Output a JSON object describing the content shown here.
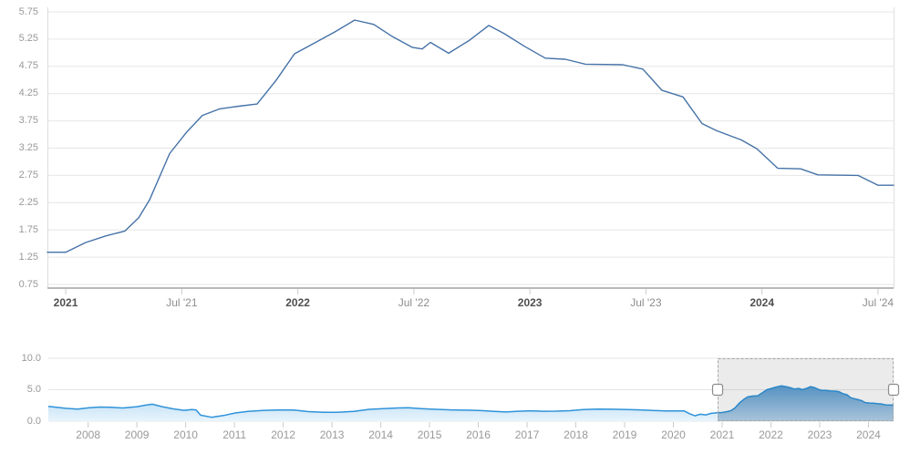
{
  "accent_colors": {
    "main_line": "#4572a7",
    "navigator_line": "#2f93d9",
    "navigator_fill_top": "#a5d2f0",
    "navigator_fill_bottom": "#e9f4fc",
    "navigator_selected_fill_top": "#5e9fd3",
    "navigator_selected_fill_bottom": "#b8d5ec",
    "gridline": "#e6e6e6",
    "axis_line": "#b9b9b9",
    "tick": "#cccccc",
    "selection_mask": "rgba(0,0,0,0.08)",
    "selection_border": "#a6a6a6",
    "handle_fill": "#ffffff",
    "handle_border": "#8c8c8c"
  },
  "chart_data": [
    {
      "type": "line",
      "name": "main-series",
      "x_range_visible": [
        "Dec 2020",
        "Aug 2024"
      ],
      "ylim": [
        0.75,
        5.75
      ],
      "grid": true,
      "y_tick_labels": [
        "5.75",
        "5.25",
        "4.75",
        "4.25",
        "3.75",
        "3.25",
        "2.75",
        "2.25",
        "1.75",
        "1.25",
        "0.75"
      ],
      "x_ticks": [
        {
          "label": "2021",
          "bold": true,
          "t": 0.0216
        },
        {
          "label": "Jul '21",
          "bold": false,
          "t": 0.1588
        },
        {
          "label": "2022",
          "bold": true,
          "t": 0.2959
        },
        {
          "label": "Jul '22",
          "bold": false,
          "t": 0.4331
        },
        {
          "label": "2023",
          "bold": true,
          "t": 0.5702
        },
        {
          "label": "Jul '23",
          "bold": false,
          "t": 0.7073
        },
        {
          "label": "2024",
          "bold": true,
          "t": 0.8445
        },
        {
          "label": "Jul '24",
          "bold": false,
          "t": 0.9816
        }
      ],
      "points": [
        [
          0.0,
          1.34
        ],
        [
          0.0216,
          1.34
        ],
        [
          0.0453,
          1.52
        ],
        [
          0.069,
          1.64
        ],
        [
          0.0916,
          1.73
        ],
        [
          0.1078,
          1.97
        ],
        [
          0.1207,
          2.3
        ],
        [
          0.1444,
          3.15
        ],
        [
          0.1649,
          3.55
        ],
        [
          0.1832,
          3.85
        ],
        [
          0.2037,
          3.97
        ],
        [
          0.2263,
          4.02
        ],
        [
          0.2478,
          4.06
        ],
        [
          0.2705,
          4.5
        ],
        [
          0.292,
          4.98
        ],
        [
          0.3157,
          5.18
        ],
        [
          0.3394,
          5.38
        ],
        [
          0.3631,
          5.6
        ],
        [
          0.3858,
          5.52
        ],
        [
          0.4073,
          5.3
        ],
        [
          0.431,
          5.1
        ],
        [
          0.4429,
          5.07
        ],
        [
          0.4526,
          5.19
        ],
        [
          0.4741,
          4.99
        ],
        [
          0.4989,
          5.23
        ],
        [
          0.5216,
          5.5
        ],
        [
          0.5399,
          5.35
        ],
        [
          0.5636,
          5.12
        ],
        [
          0.5884,
          4.9
        ],
        [
          0.6121,
          4.88
        ],
        [
          0.6358,
          4.79
        ],
        [
          0.68,
          4.78
        ],
        [
          0.7037,
          4.7
        ],
        [
          0.7263,
          4.31
        ],
        [
          0.7511,
          4.19
        ],
        [
          0.7737,
          3.7
        ],
        [
          0.7909,
          3.57
        ],
        [
          0.82,
          3.4
        ],
        [
          0.8384,
          3.24
        ],
        [
          0.8631,
          2.88
        ],
        [
          0.8901,
          2.87
        ],
        [
          0.9106,
          2.76
        ],
        [
          0.958,
          2.75
        ],
        [
          0.9817,
          2.57
        ],
        [
          1.0,
          2.57
        ]
      ]
    },
    {
      "type": "area",
      "name": "navigator-series",
      "x_range": [
        "2007",
        "2024"
      ],
      "ylim": [
        0,
        10
      ],
      "y_tick_labels": [
        "10.0",
        "5.0",
        "0.0"
      ],
      "y_tick_values": [
        10,
        5,
        0
      ],
      "year_labels": [
        "2008",
        "2009",
        "2010",
        "2011",
        "2012",
        "2013",
        "2014",
        "2015",
        "2016",
        "2017",
        "2018",
        "2019",
        "2020",
        "2021",
        "2022",
        "2023",
        "2024"
      ],
      "year_t": [
        0.0471,
        0.1048,
        0.1625,
        0.2202,
        0.2779,
        0.3356,
        0.3933,
        0.451,
        0.5087,
        0.5664,
        0.6241,
        0.6818,
        0.7395,
        0.7972,
        0.8549,
        0.9126,
        0.9703
      ],
      "selection": {
        "from_t": 0.7918,
        "to_t": 1.0
      },
      "points": [
        [
          0.0,
          2.35
        ],
        [
          0.0097,
          2.2
        ],
        [
          0.0205,
          2.05
        ],
        [
          0.0345,
          1.92
        ],
        [
          0.0485,
          2.15
        ],
        [
          0.0615,
          2.25
        ],
        [
          0.0744,
          2.2
        ],
        [
          0.0885,
          2.1
        ],
        [
          0.1046,
          2.3
        ],
        [
          0.1154,
          2.55
        ],
        [
          0.123,
          2.7
        ],
        [
          0.1348,
          2.3
        ],
        [
          0.1478,
          1.95
        ],
        [
          0.1607,
          1.72
        ],
        [
          0.1694,
          1.85
        ],
        [
          0.1748,
          1.8
        ],
        [
          0.1801,
          0.95
        ],
        [
          0.1931,
          0.62
        ],
        [
          0.2071,
          0.9
        ],
        [
          0.2211,
          1.3
        ],
        [
          0.2362,
          1.55
        ],
        [
          0.2557,
          1.72
        ],
        [
          0.2751,
          1.8
        ],
        [
          0.2902,
          1.78
        ],
        [
          0.3074,
          1.52
        ],
        [
          0.3258,
          1.4
        ],
        [
          0.342,
          1.42
        ],
        [
          0.3614,
          1.55
        ],
        [
          0.3797,
          1.88
        ],
        [
          0.3959,
          2.0
        ],
        [
          0.4132,
          2.1
        ],
        [
          0.4261,
          2.14
        ],
        [
          0.4412,
          2.0
        ],
        [
          0.4585,
          1.88
        ],
        [
          0.4768,
          1.8
        ],
        [
          0.4951,
          1.75
        ],
        [
          0.5124,
          1.68
        ],
        [
          0.5275,
          1.55
        ],
        [
          0.5415,
          1.47
        ],
        [
          0.5556,
          1.58
        ],
        [
          0.5707,
          1.65
        ],
        [
          0.5847,
          1.58
        ],
        [
          0.6009,
          1.6
        ],
        [
          0.6171,
          1.67
        ],
        [
          0.6332,
          1.85
        ],
        [
          0.6494,
          1.92
        ],
        [
          0.6678,
          1.9
        ],
        [
          0.685,
          1.84
        ],
        [
          0.7001,
          1.8
        ],
        [
          0.7152,
          1.7
        ],
        [
          0.7303,
          1.63
        ],
        [
          0.7433,
          1.62
        ],
        [
          0.7519,
          1.65
        ],
        [
          0.7584,
          1.2
        ],
        [
          0.7649,
          0.85
        ],
        [
          0.7713,
          1.1
        ],
        [
          0.7778,
          1.0
        ],
        [
          0.7843,
          1.25
        ],
        [
          0.7918,
          1.35
        ],
        [
          0.7972,
          1.38
        ],
        [
          0.8026,
          1.5
        ],
        [
          0.808,
          1.7
        ],
        [
          0.8123,
          2.1
        ],
        [
          0.8177,
          2.9
        ],
        [
          0.8231,
          3.5
        ],
        [
          0.8274,
          3.85
        ],
        [
          0.8328,
          3.98
        ],
        [
          0.8393,
          4.05
        ],
        [
          0.8447,
          4.5
        ],
        [
          0.8501,
          5.0
        ],
        [
          0.8554,
          5.2
        ],
        [
          0.8608,
          5.42
        ],
        [
          0.8673,
          5.62
        ],
        [
          0.8727,
          5.5
        ],
        [
          0.8781,
          5.3
        ],
        [
          0.8824,
          5.12
        ],
        [
          0.8878,
          5.2
        ],
        [
          0.8921,
          5.02
        ],
        [
          0.8975,
          5.25
        ],
        [
          0.9018,
          5.5
        ],
        [
          0.9061,
          5.35
        ],
        [
          0.9104,
          5.1
        ],
        [
          0.9147,
          4.9
        ],
        [
          0.9201,
          4.88
        ],
        [
          0.9255,
          4.79
        ],
        [
          0.9309,
          4.78
        ],
        [
          0.9352,
          4.7
        ],
        [
          0.9406,
          4.35
        ],
        [
          0.9449,
          4.2
        ],
        [
          0.9493,
          3.72
        ],
        [
          0.9536,
          3.58
        ],
        [
          0.9579,
          3.42
        ],
        [
          0.9622,
          3.26
        ],
        [
          0.9665,
          2.95
        ],
        [
          0.9719,
          2.88
        ],
        [
          0.9762,
          2.85
        ],
        [
          0.9806,
          2.78
        ],
        [
          0.9849,
          2.76
        ],
        [
          0.9903,
          2.6
        ],
        [
          0.9957,
          2.57
        ],
        [
          1.0,
          2.55
        ]
      ]
    }
  ]
}
